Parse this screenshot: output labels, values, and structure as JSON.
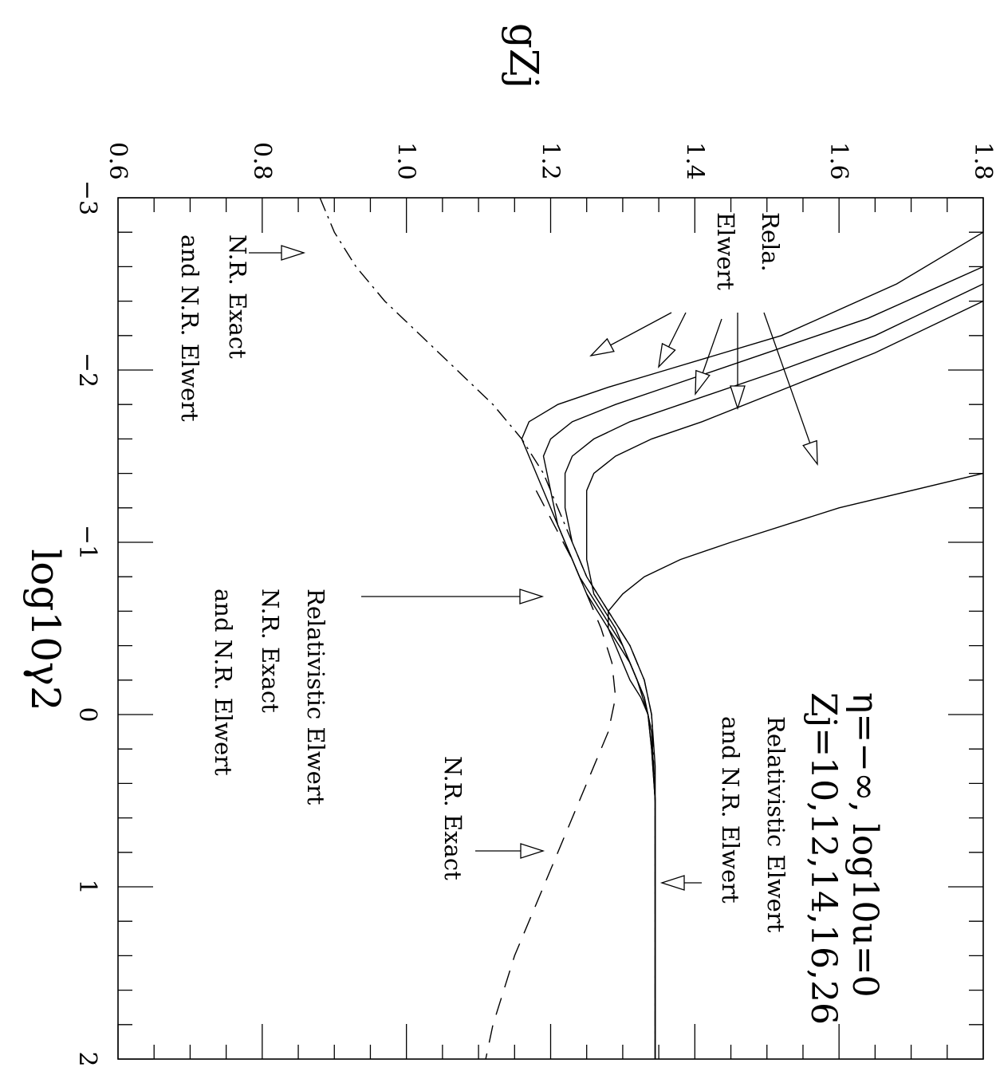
{
  "chart_data": {
    "type": "line",
    "title_line1": "η=−∞, log10u=0",
    "title_line2": "Zj=10,12,14,16,26",
    "xlabel": "log10γ2",
    "ylabel": "gZj",
    "xlim": [
      -3,
      2
    ],
    "ylim": [
      0.6,
      1.8
    ],
    "x_ticks": [
      "−3",
      "−2",
      "−1",
      "0",
      "1",
      "2"
    ],
    "y_ticks": [
      "0.6",
      "0.8",
      "1.0",
      "1.2",
      "1.4",
      "1.6",
      "1.8"
    ],
    "series": [
      {
        "style": "solid",
        "x": [
          -2.8,
          -2.5,
          -2.2,
          -2.0,
          -1.9,
          -1.8,
          -1.7,
          -1.6,
          -1.4,
          -1.2,
          -1.0,
          -0.8,
          -0.6,
          -0.4,
          -0.2,
          0.0,
          0.2,
          0.5,
          1.0,
          1.5,
          2.0
        ],
        "y": [
          1.8,
          1.68,
          1.52,
          1.36,
          1.28,
          1.21,
          1.17,
          1.16,
          1.18,
          1.2,
          1.22,
          1.24,
          1.27,
          1.3,
          1.32,
          1.335,
          1.34,
          1.345,
          1.345,
          1.345,
          1.345
        ]
      },
      {
        "style": "solid",
        "x": [
          -2.6,
          -2.3,
          -2.1,
          -1.9,
          -1.8,
          -1.7,
          -1.6,
          -1.5,
          -1.3,
          -1.1,
          -0.9,
          -0.7,
          -0.5,
          -0.3,
          -0.1,
          0.1,
          0.5,
          1.0,
          2.0
        ],
        "y": [
          1.8,
          1.64,
          1.5,
          1.36,
          1.29,
          1.23,
          1.2,
          1.19,
          1.2,
          1.21,
          1.23,
          1.25,
          1.28,
          1.31,
          1.33,
          1.34,
          1.345,
          1.345,
          1.345
        ]
      },
      {
        "style": "solid",
        "x": [
          -2.5,
          -2.2,
          -2.0,
          -1.8,
          -1.7,
          -1.6,
          -1.5,
          -1.4,
          -1.2,
          -1.0,
          -0.8,
          -0.6,
          -0.4,
          -0.2,
          0.0,
          0.3,
          0.8,
          2.0
        ],
        "y": [
          1.8,
          1.65,
          1.52,
          1.38,
          1.31,
          1.26,
          1.23,
          1.22,
          1.22,
          1.23,
          1.25,
          1.28,
          1.31,
          1.33,
          1.34,
          1.345,
          1.345,
          1.345
        ]
      },
      {
        "style": "solid",
        "x": [
          -2.4,
          -2.1,
          -1.9,
          -1.7,
          -1.6,
          -1.5,
          -1.4,
          -1.3,
          -1.1,
          -0.9,
          -0.7,
          -0.5,
          -0.3,
          -0.1,
          0.1,
          0.5,
          1.0,
          2.0
        ],
        "y": [
          1.8,
          1.65,
          1.53,
          1.41,
          1.34,
          1.29,
          1.26,
          1.25,
          1.25,
          1.25,
          1.26,
          1.29,
          1.31,
          1.33,
          1.34,
          1.345,
          1.345,
          1.345
        ]
      },
      {
        "style": "solid",
        "x": [
          -1.4,
          -1.2,
          -1.0,
          -0.9,
          -0.8,
          -0.7,
          -0.6,
          -0.5,
          -0.4,
          -0.3,
          -0.2,
          -0.1,
          0.0,
          0.2,
          0.5,
          1.0,
          2.0
        ],
        "y": [
          1.8,
          1.6,
          1.45,
          1.38,
          1.33,
          1.3,
          1.28,
          1.28,
          1.29,
          1.3,
          1.31,
          1.325,
          1.335,
          1.34,
          1.345,
          1.345,
          1.345
        ]
      },
      {
        "style": "dashdot",
        "x": [
          -3.0,
          -2.8,
          -2.6,
          -2.4,
          -2.2,
          -2.0,
          -1.8,
          -1.6,
          -1.4,
          -1.2,
          -1.0,
          -0.8,
          -0.6,
          -0.4,
          -0.2,
          0.0,
          0.5,
          1.0,
          2.0
        ],
        "y": [
          0.88,
          0.9,
          0.93,
          0.97,
          1.02,
          1.07,
          1.12,
          1.16,
          1.19,
          1.21,
          1.23,
          1.25,
          1.28,
          1.31,
          1.33,
          1.34,
          1.345,
          1.345,
          1.345
        ]
      },
      {
        "style": "dashed",
        "x": [
          -1.3,
          -1.1,
          -0.9,
          -0.7,
          -0.5,
          -0.3,
          -0.1,
          0.1,
          0.3,
          0.6,
          1.0,
          1.4,
          1.8,
          2.0
        ],
        "y": [
          1.18,
          1.205,
          1.23,
          1.25,
          1.27,
          1.285,
          1.29,
          1.28,
          1.26,
          1.23,
          1.19,
          1.15,
          1.12,
          1.11
        ]
      }
    ],
    "annotations": [
      {
        "id": "rela-elwert",
        "lines": [
          "Rela.",
          "Elwert"
        ]
      },
      {
        "id": "nr-exact-elwert-left",
        "lines": [
          "N.R. Exact",
          "and N.R. Elwert"
        ]
      },
      {
        "id": "rel-nr-mid",
        "lines": [
          "Relativistic Elwert",
          "N.R. Exact",
          "and N.R. Elwert"
        ]
      },
      {
        "id": "rel-nr-top",
        "lines": [
          "Relativistic Elwert",
          "and N.R. Elwert"
        ]
      },
      {
        "id": "nr-exact",
        "lines": [
          "N.R. Exact"
        ]
      }
    ]
  }
}
